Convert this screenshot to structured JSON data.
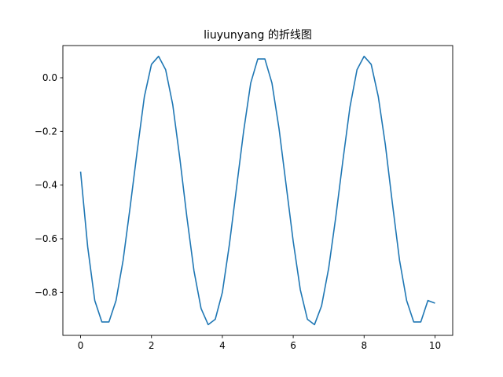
{
  "chart_data": {
    "type": "line",
    "title": "liuyunyang 的折线图",
    "xlabel": "",
    "ylabel": "",
    "xlim": [
      -0.5,
      10.5
    ],
    "ylim": [
      -0.96,
      0.12
    ],
    "x_ticks": [
      0,
      2,
      4,
      6,
      8,
      10
    ],
    "y_ticks": [
      0.0,
      -0.2,
      -0.4,
      -0.6,
      -0.8
    ],
    "x_tick_labels": [
      "0",
      "2",
      "4",
      "6",
      "8",
      "10"
    ],
    "y_tick_labels": [
      "0.0",
      "−0.2",
      "−0.4",
      "−0.6",
      "−0.8"
    ],
    "grid": false,
    "line_color": "#1f77b4",
    "series": [
      {
        "x": [
          0.0,
          0.2,
          0.4,
          0.6,
          0.8,
          1.0,
          1.2,
          1.4,
          1.6,
          1.8,
          2.0,
          2.2,
          2.4,
          2.6,
          2.8,
          3.0,
          3.2,
          3.4,
          3.6,
          3.8,
          4.0,
          4.2,
          4.4,
          4.6,
          4.8,
          5.0,
          5.2,
          5.4,
          5.6,
          5.8,
          6.0,
          6.2,
          6.4,
          6.6,
          6.8,
          7.0,
          7.2,
          7.4,
          7.6,
          7.8,
          8.0,
          8.2,
          8.4,
          8.6,
          8.8,
          9.0,
          9.2,
          9.4,
          9.6,
          9.8,
          10.0
        ],
        "values": [
          -0.35,
          -0.63,
          -0.83,
          -0.91,
          -0.91,
          -0.83,
          -0.68,
          -0.48,
          -0.27,
          -0.07,
          0.05,
          0.08,
          0.03,
          -0.1,
          -0.3,
          -0.52,
          -0.72,
          -0.86,
          -0.92,
          -0.9,
          -0.8,
          -0.62,
          -0.41,
          -0.2,
          -0.02,
          0.07,
          0.07,
          -0.02,
          -0.19,
          -0.4,
          -0.61,
          -0.79,
          -0.9,
          -0.92,
          -0.85,
          -0.71,
          -0.52,
          -0.31,
          -0.11,
          0.03,
          0.08,
          0.05,
          -0.07,
          -0.25,
          -0.47,
          -0.68,
          -0.83,
          -0.91,
          -0.91,
          -0.83,
          -0.84
        ]
      }
    ]
  }
}
